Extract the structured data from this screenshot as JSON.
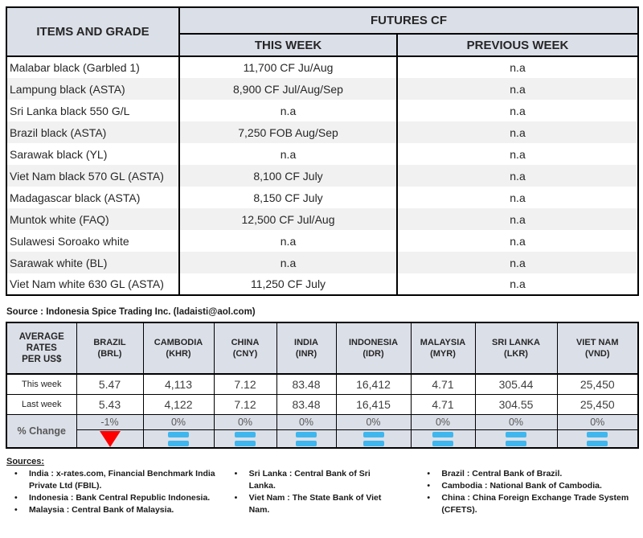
{
  "futures_table": {
    "col_items": "ITEMS AND GRADE",
    "col_group": "FUTURES CF",
    "col_this_week": "THIS WEEK",
    "col_prev_week": "PREVIOUS WEEK",
    "rows": [
      {
        "item": "Malabar black (Garbled 1)",
        "this_week": "11,700 CF Ju/Aug",
        "prev_week": "n.a"
      },
      {
        "item": "Lampung black (ASTA)",
        "this_week": "8,900 CF Jul/Aug/Sep",
        "prev_week": "n.a"
      },
      {
        "item": "Sri Lanka black 550 G/L",
        "this_week": "n.a",
        "prev_week": "n.a"
      },
      {
        "item": "Brazil black (ASTA)",
        "this_week": "7,250 FOB Aug/Sep",
        "prev_week": "n.a"
      },
      {
        "item": "Sarawak black (YL)",
        "this_week": "n.a",
        "prev_week": "n.a"
      },
      {
        "item": "Viet Nam black 570 GL (ASTA)",
        "this_week": "8,100 CF July",
        "prev_week": "n.a"
      },
      {
        "item": "Madagascar black (ASTA)",
        "this_week": "8,150 CF July",
        "prev_week": "n.a"
      },
      {
        "item": "Muntok white (FAQ)",
        "this_week": "12,500 CF Jul/Aug",
        "prev_week": "n.a"
      },
      {
        "item": "Sulawesi Soroako white",
        "this_week": "n.a",
        "prev_week": "n.a"
      },
      {
        "item": "Sarawak  white (BL)",
        "this_week": "n.a",
        "prev_week": "n.a"
      },
      {
        "item": "Viet Nam white 630 GL (ASTA)",
        "this_week": "11,250 CF July",
        "prev_week": "n.a"
      }
    ],
    "source_note": "Source : Indonesia Spice Trading Inc. (ladaisti@aol.com)"
  },
  "rates_table": {
    "corner_label": "AVERAGE RATES PER US$",
    "row_labels": {
      "this_week": "This week",
      "last_week": "Last week",
      "pct_change": "% Change"
    },
    "columns": [
      {
        "country": "BRAZIL",
        "code": "(BRL)",
        "this_week": "5.47",
        "last_week": "5.43",
        "pct": "-1%",
        "trend": "down"
      },
      {
        "country": "CAMBODIA",
        "code": "(KHR)",
        "this_week": "4,113",
        "last_week": "4,122",
        "pct": "0%",
        "trend": "equal"
      },
      {
        "country": "CHINA",
        "code": "(CNY)",
        "this_week": "7.12",
        "last_week": "7.12",
        "pct": "0%",
        "trend": "equal"
      },
      {
        "country": "INDIA",
        "code": "(INR)",
        "this_week": "83.48",
        "last_week": "83.48",
        "pct": "0%",
        "trend": "equal"
      },
      {
        "country": "INDONESIA",
        "code": "(IDR)",
        "this_week": "16,412",
        "last_week": "16,415",
        "pct": "0%",
        "trend": "equal"
      },
      {
        "country": "MALAYSIA",
        "code": "(MYR)",
        "this_week": "4.71",
        "last_week": "4.71",
        "pct": "0%",
        "trend": "equal"
      },
      {
        "country": "SRI LANKA",
        "code": "(LKR)",
        "this_week": "305.44",
        "last_week": "304.55",
        "pct": "0%",
        "trend": "equal"
      },
      {
        "country": "VIET NAM",
        "code": "(VND)",
        "this_week": "25,450",
        "last_week": "25,450",
        "pct": "0%",
        "trend": "equal"
      }
    ]
  },
  "sources": {
    "heading": "Sources:",
    "col1": [
      "India : x-rates.com, Financial Benchmark India Private Ltd (FBIL).",
      "Indonesia : Bank Central Republic Indonesia.",
      "Malaysia : Central Bank of Malaysia."
    ],
    "col2": [
      "Sri Lanka : Central Bank of Sri Lanka.",
      "Viet Nam : The State Bank of Viet Nam."
    ],
    "col3": [
      "Brazil :  Central Bank of Brazil.",
      "Cambodia : National Bank of Cambodia.",
      "China : China Foreign Exchange Trade System (CFETS)."
    ]
  },
  "colors": {
    "header_bg": "#dbdfe8",
    "alt_row_bg": "#f1f1f1",
    "equal_icon_blue": "#3fb6ed",
    "down_icon_red": "#fe0000",
    "border_black": "#000000"
  }
}
